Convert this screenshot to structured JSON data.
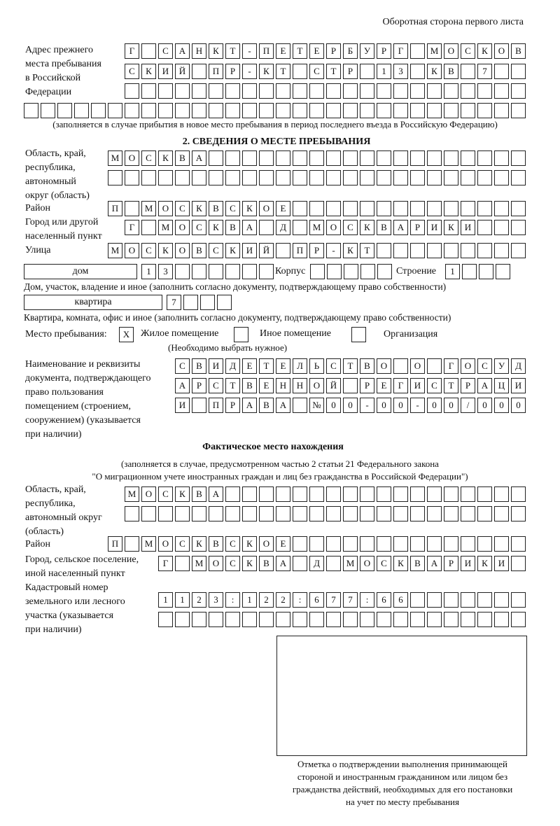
{
  "header": "Оборотная сторона первого листа",
  "prev_address": {
    "label": [
      "Адрес прежнего",
      "места пребывания",
      "в Российской",
      "Федерации"
    ],
    "rows": [
      "Г САНКТ-ПЕТЕРБУРГ МОСКОВ",
      "СКИЙ ПР-КТ СТР 13 КВ 7",
      "",
      ""
    ],
    "note": "(заполняется в случае прибытия в новое место пребывания в период последнего въезда в Российскую Федерацию)"
  },
  "section2": {
    "title": "2. СВЕДЕНИЯ О МЕСТЕ ПРЕБЫВАНИЯ",
    "oblast_label": [
      "Область, край,",
      "республика,",
      "автономный",
      "округ (область)"
    ],
    "oblast_rows": [
      "МОСКВА",
      ""
    ],
    "rayon_label": "Район",
    "rayon": "П МОСКВСКОЕ",
    "city_label": [
      "Город или другой",
      "населенный пункт"
    ],
    "city": "Г МОСКВА Д МОСКВАРИКИ",
    "street_label": "Улица",
    "street": "МОСКОВСКИЙ ПР-КТ",
    "house_type": "дом",
    "house": "13",
    "korpus_label": "Корпус",
    "korpus": "",
    "stroenie_label": "Строение",
    "stroenie": "1",
    "house_note": "Дом, участок, владение и иное (заполнить согласно документу, подтверждающему право собственности)",
    "flat_type": "квартира",
    "flat": "7",
    "flat_note": "Квартира, комната, офис и иное (заполнить согласно документу, подтверждающему право собственности)",
    "place_label": "Место пребывания:",
    "place_options": [
      {
        "label": "Жилое помещение",
        "mark": "X"
      },
      {
        "label": "Иное помещение",
        "mark": ""
      },
      {
        "label": "Организация",
        "mark": ""
      }
    ],
    "place_note": "(Необходимо выбрать нужное)",
    "doc_label": [
      "Наименование и реквизиты",
      "документа, подтверждающего",
      "право пользования",
      "помещением (строением,",
      "сооружением) (указывается",
      "при наличии)"
    ],
    "doc_rows": [
      "СВИДЕТЕЛЬСТВО О ГОСУД",
      "АРСТВЕННОЙ РЕГИСТРАЦИ",
      "И ПРАВА №00-00-00/000"
    ]
  },
  "actual": {
    "title": "Фактическое место нахождения",
    "note": [
      "(заполняется в случае, предусмотренном частью 2 статьи 21 Федерального закона",
      "\"О миграционном учете иностранных граждан и лиц без гражданства в Российской Федерации\")"
    ],
    "oblast_label": [
      "Область, край,",
      "республика,",
      "автономный округ",
      "(область)"
    ],
    "oblast_rows": [
      "МОСКВА",
      ""
    ],
    "rayon_label": "Район",
    "rayon": "П МОСКВСКОЕ",
    "city_label": [
      "Город, сельское поселение,",
      "иной населенный пункт"
    ],
    "city": "Г МОСКВА Д МОСКВАРИКИ",
    "cadastre_label": [
      "Кадастровый номер",
      "земельного или лесного",
      "участка (указывается",
      "при наличии)"
    ],
    "cadastre_rows": [
      "1123:122:677:66",
      ""
    ],
    "stamp_caption": [
      "Отметка о подтверждении выполнения принимающей",
      "стороной и иностранным гражданином или лицом без",
      "гражданства действий, необходимых для его постановки",
      "на учет по месту пребывания"
    ]
  }
}
